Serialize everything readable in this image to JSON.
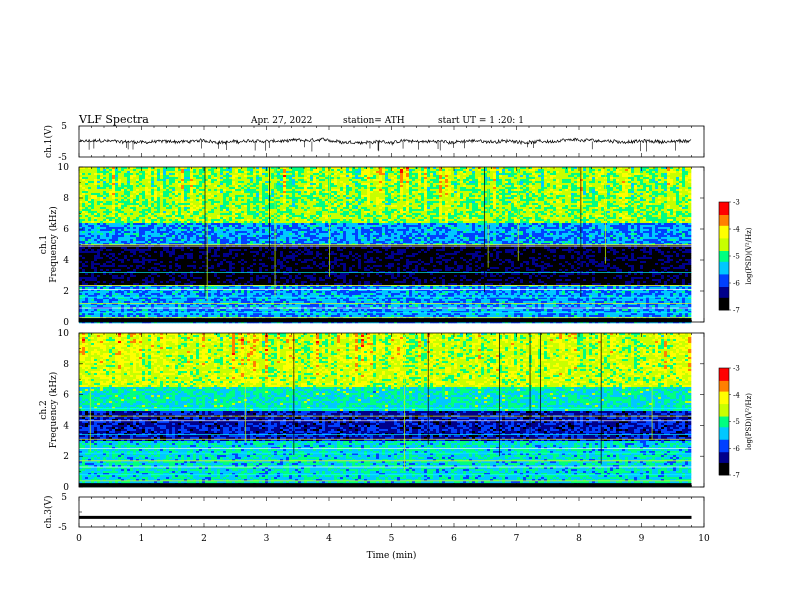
{
  "header": {
    "title": "VLF Spectra",
    "date": "Apr. 27, 2022",
    "station": "station= ATH",
    "start": "start UT = 1 :20: 1"
  },
  "chart_data": [
    {
      "type": "line",
      "name": "ch1-waveform",
      "ylabel": "ch.1(V)",
      "ylim": [
        -5,
        5
      ],
      "y_ticks": [
        "5",
        "-5"
      ],
      "x_range_min": [
        0,
        9.8
      ],
      "description_values": {
        "baseline_v": 0,
        "noise_amplitude_v": 0.5,
        "spike_min_v": -3
      }
    },
    {
      "type": "heatmap",
      "name": "ch1-spectrogram",
      "ylabel": "ch.1 Frequency (kHz)",
      "ylim": [
        0,
        10
      ],
      "y_ticks": [
        "0",
        "2",
        "4",
        "6",
        "8",
        "10"
      ],
      "xlim": [
        0,
        10
      ],
      "data_extent_x": [
        0,
        9.8
      ],
      "colorbar": {
        "label": "log(PSD)(V²/Hz)",
        "range": [
          -7,
          -3
        ],
        "ticks": [
          "-3",
          "-4",
          "-5",
          "-6",
          "-7"
        ]
      },
      "bands": [
        {
          "f_from": 0,
          "f_to": 2.5,
          "level": -5.6
        },
        {
          "f_from": 2.5,
          "f_to": 5.0,
          "level": -6.7
        },
        {
          "f_from": 5.0,
          "f_to": 6.5,
          "level": -5.6
        },
        {
          "f_from": 6.5,
          "f_to": 10,
          "level": -4.7
        }
      ]
    },
    {
      "type": "heatmap",
      "name": "ch2-spectrogram",
      "ylabel": "ch.2 Frequency (kHz)",
      "ylim": [
        0,
        10
      ],
      "y_ticks": [
        "0",
        "2",
        "4",
        "6",
        "8",
        "10"
      ],
      "xlim": [
        0,
        10
      ],
      "data_extent_x": [
        0,
        9.8
      ],
      "colorbar": {
        "label": "log(PSD)(V²/Hz)",
        "range": [
          -7,
          -3
        ],
        "ticks": [
          "-3",
          "-4",
          "-5",
          "-6",
          "-7"
        ]
      },
      "bands": [
        {
          "f_from": 0,
          "f_to": 3.0,
          "level": -5.3
        },
        {
          "f_from": 3.0,
          "f_to": 5.0,
          "level": -6.2
        },
        {
          "f_from": 5.0,
          "f_to": 6.5,
          "level": -5.2
        },
        {
          "f_from": 6.5,
          "f_to": 10,
          "level": -4.5
        }
      ]
    },
    {
      "type": "line",
      "name": "ch3-waveform",
      "ylabel": "ch.3(V)",
      "ylim": [
        -5,
        5
      ],
      "y_ticks": [
        "5",
        "-5"
      ],
      "x": [
        0,
        9.8
      ],
      "y": [
        -1.8,
        -1.8
      ]
    }
  ],
  "x_axis": {
    "xlabel": "Time (min)",
    "xlim": [
      0,
      10
    ],
    "ticks": [
      "0",
      "1",
      "2",
      "3",
      "4",
      "5",
      "6",
      "7",
      "8",
      "9",
      "10"
    ]
  },
  "colors": {
    "colormap": [
      "#000000",
      "#00008b",
      "#0040ff",
      "#00c8ff",
      "#00ff80",
      "#c8ff00",
      "#ffff00",
      "#ff8000",
      "#ff0000",
      "#ffffff"
    ]
  }
}
